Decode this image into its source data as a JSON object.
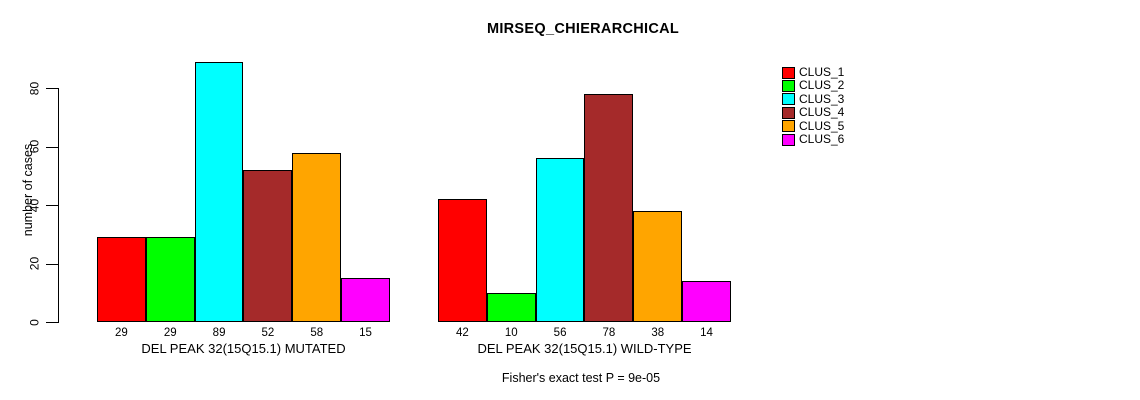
{
  "chart_data": {
    "type": "bar",
    "title": "MIRSEQ_CHIERARCHICAL",
    "ylabel": "number of cases",
    "xlabel": "",
    "categories": [
      "CLUS_1",
      "CLUS_2",
      "CLUS_3",
      "CLUS_4",
      "CLUS_5",
      "CLUS_6"
    ],
    "series": [
      {
        "name": "DEL PEAK 32(15Q15.1) MUTATED",
        "values": [
          29,
          29,
          89,
          52,
          58,
          15
        ]
      },
      {
        "name": "DEL PEAK 32(15Q15.1) WILD-TYPE",
        "values": [
          42,
          10,
          56,
          78,
          38,
          14
        ]
      }
    ],
    "colors": [
      "#FF0000",
      "#00FF00",
      "#00FFFF",
      "#A52A2A",
      "#FFA500",
      "#FF00FF"
    ],
    "bar_border_color": "#000000",
    "yticks": [
      0,
      20,
      40,
      60,
      80
    ],
    "ylim": [
      0,
      93
    ],
    "grid": false,
    "legend_position": "right-outside",
    "legend_labels": [
      "CLUS_1",
      "CLUS_2",
      "CLUS_3",
      "CLUS_4",
      "CLUS_5",
      "CLUS_6"
    ],
    "annotation": "Fisher's exact test P = 9e-05"
  }
}
